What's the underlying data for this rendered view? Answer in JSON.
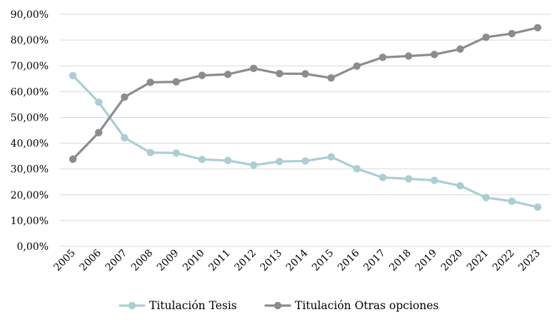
{
  "chart_data": {
    "type": "line",
    "x": [
      "2005",
      "2006",
      "2007",
      "2008",
      "2009",
      "2010",
      "2011",
      "2012",
      "2013",
      "2014",
      "2015",
      "2016",
      "2017",
      "2018",
      "2019",
      "2020",
      "2021",
      "2022",
      "2023"
    ],
    "series": [
      {
        "name": "Titulación Tesis",
        "color": "#a9cfd4",
        "values": [
          66.2,
          55.9,
          42.1,
          36.4,
          36.2,
          33.7,
          33.3,
          31.5,
          32.9,
          33.1,
          34.7,
          30.1,
          26.7,
          26.2,
          25.6,
          23.5,
          18.9,
          17.5,
          15.2
        ]
      },
      {
        "name": "Titulación Otras opciones",
        "color": "#8c8c8e",
        "values": [
          33.8,
          44.1,
          57.9,
          63.6,
          63.8,
          66.3,
          66.7,
          69.0,
          67.0,
          66.9,
          65.3,
          69.9,
          73.3,
          73.8,
          74.4,
          76.5,
          81.1,
          82.5,
          84.8
        ]
      }
    ],
    "y_ticks": [
      "0,00%",
      "10,00%",
      "20,00%",
      "30,00%",
      "40,00%",
      "50,00%",
      "60,00%",
      "70,00%",
      "80,00%",
      "90,00%"
    ],
    "ylim": [
      0,
      90
    ],
    "grid": true,
    "legend_position": "bottom",
    "title": "",
    "xlabel": "",
    "ylabel": ""
  }
}
